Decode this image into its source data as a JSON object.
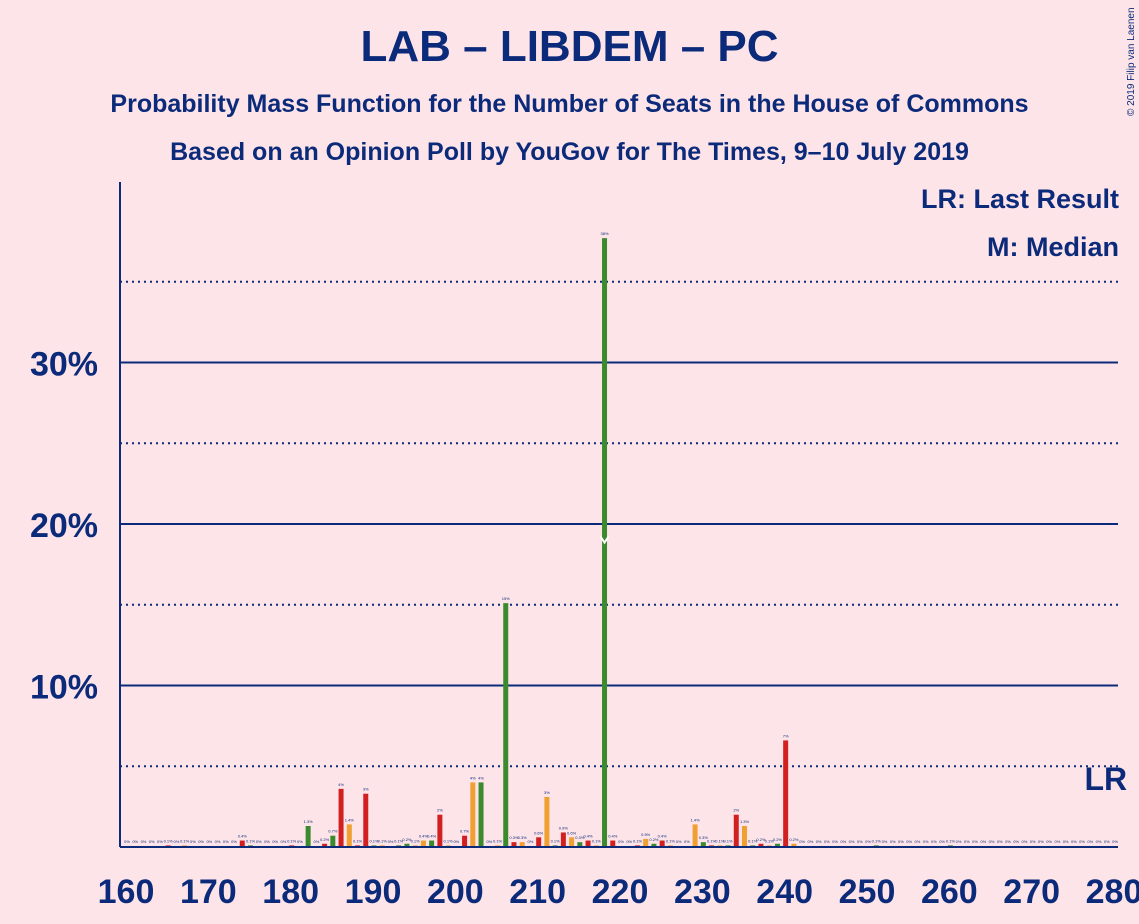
{
  "title": "LAB – LIBDEM – PC",
  "subtitle": "Probability Mass Function for the Number of Seats in the House of Commons",
  "subtitle2": "Based on an Opinion Poll by YouGov for The Times, 9–10 July 2019",
  "copyright": "© 2019 Filip van Laenen",
  "legend": {
    "last_result": "LR: Last Result",
    "median": "M: Median"
  },
  "colors": {
    "background": "#fde4e8",
    "text": "#0c2a7a",
    "green": "#3c8a2e",
    "orange": "#f0a030",
    "red": "#d22020"
  },
  "chart_data": {
    "type": "bar",
    "x_range": [
      160,
      280
    ],
    "x_ticks": [
      160,
      170,
      180,
      190,
      200,
      210,
      220,
      230,
      240,
      250,
      260,
      270,
      280
    ],
    "y_ticks_labelled": [
      10,
      20,
      30
    ],
    "y_tick_labels": [
      "10%",
      "20%",
      "30%"
    ],
    "y_dotted": [
      5,
      15,
      25,
      35
    ],
    "ylim": [
      0,
      41
    ],
    "last_result_seat": 279,
    "last_result_label": "LR",
    "median_seat": 218,
    "median_label": "M",
    "bars": [
      {
        "seat": 160,
        "value": 0.0,
        "label": "0%",
        "color": "green"
      },
      {
        "seat": 161,
        "value": 0.0,
        "label": "0%",
        "color": "orange"
      },
      {
        "seat": 162,
        "value": 0.0,
        "label": "0%",
        "color": "red"
      },
      {
        "seat": 163,
        "value": 0.0,
        "label": "0%",
        "color": "green"
      },
      {
        "seat": 164,
        "value": 0.0,
        "label": "0%",
        "color": "orange"
      },
      {
        "seat": 165,
        "value": 0.1,
        "label": "0.1%",
        "color": "red"
      },
      {
        "seat": 166,
        "value": 0.0,
        "label": "0%",
        "color": "green"
      },
      {
        "seat": 167,
        "value": 0.1,
        "label": "0.1%",
        "color": "orange"
      },
      {
        "seat": 168,
        "value": 0.0,
        "label": "0%",
        "color": "red"
      },
      {
        "seat": 169,
        "value": 0.0,
        "label": "0%",
        "color": "green"
      },
      {
        "seat": 170,
        "value": 0.0,
        "label": "0%",
        "color": "orange"
      },
      {
        "seat": 171,
        "value": 0.0,
        "label": "0%",
        "color": "red"
      },
      {
        "seat": 172,
        "value": 0.0,
        "label": "0%",
        "color": "green"
      },
      {
        "seat": 173,
        "value": 0.0,
        "label": "0%",
        "color": "orange"
      },
      {
        "seat": 174,
        "value": 0.4,
        "label": "0.4%",
        "color": "red"
      },
      {
        "seat": 175,
        "value": 0.1,
        "label": "0.1%",
        "color": "green"
      },
      {
        "seat": 176,
        "value": 0.0,
        "label": "0%",
        "color": "orange"
      },
      {
        "seat": 177,
        "value": 0.0,
        "label": "0%",
        "color": "red"
      },
      {
        "seat": 178,
        "value": 0.0,
        "label": "0%",
        "color": "green"
      },
      {
        "seat": 179,
        "value": 0.0,
        "label": "0%",
        "color": "orange"
      },
      {
        "seat": 180,
        "value": 0.1,
        "label": "0.1%",
        "color": "red"
      },
      {
        "seat": 181,
        "value": 0.0,
        "label": "0%",
        "color": "orange"
      },
      {
        "seat": 182,
        "value": 1.3,
        "label": "1.3%",
        "color": "green"
      },
      {
        "seat": 183,
        "value": 0.0,
        "label": "0%",
        "color": "orange"
      },
      {
        "seat": 184,
        "value": 0.2,
        "label": "0.2%",
        "color": "red"
      },
      {
        "seat": 185,
        "value": 0.7,
        "label": "0.7%",
        "color": "green"
      },
      {
        "seat": 186,
        "value": 3.6,
        "label": "4%",
        "color": "red"
      },
      {
        "seat": 187,
        "value": 1.4,
        "label": "1.4%",
        "color": "orange"
      },
      {
        "seat": 188,
        "value": 0.1,
        "label": "0.1%",
        "color": "red"
      },
      {
        "seat": 189,
        "value": 3.3,
        "label": "3%",
        "color": "red"
      },
      {
        "seat": 190,
        "value": 0.1,
        "label": "0.1%",
        "color": "green"
      },
      {
        "seat": 191,
        "value": 0.1,
        "label": "0.1%",
        "color": "orange"
      },
      {
        "seat": 192,
        "value": 0.0,
        "label": "0%",
        "color": "red"
      },
      {
        "seat": 193,
        "value": 0.1,
        "label": "0.1%",
        "color": "green"
      },
      {
        "seat": 194,
        "value": 0.2,
        "label": "0.2%",
        "color": "green"
      },
      {
        "seat": 195,
        "value": 0.1,
        "label": "0.1%",
        "color": "orange"
      },
      {
        "seat": 196,
        "value": 0.4,
        "label": "0.4%",
        "color": "orange"
      },
      {
        "seat": 197,
        "value": 0.4,
        "label": "0.4%",
        "color": "green"
      },
      {
        "seat": 198,
        "value": 2.0,
        "label": "2%",
        "color": "red"
      },
      {
        "seat": 199,
        "value": 0.1,
        "label": "0.1%",
        "color": "orange"
      },
      {
        "seat": 200,
        "value": 0.0,
        "label": "0%",
        "color": "green"
      },
      {
        "seat": 201,
        "value": 0.7,
        "label": "0.7%",
        "color": "red"
      },
      {
        "seat": 202,
        "value": 4.0,
        "label": "4%",
        "color": "orange"
      },
      {
        "seat": 203,
        "value": 4.0,
        "label": "4%",
        "color": "green"
      },
      {
        "seat": 204,
        "value": 0.0,
        "label": "0%",
        "color": "red"
      },
      {
        "seat": 205,
        "value": 0.1,
        "label": "0.1%",
        "color": "orange"
      },
      {
        "seat": 206,
        "value": 15.1,
        "label": "15%",
        "color": "green"
      },
      {
        "seat": 207,
        "value": 0.3,
        "label": "0.3%",
        "color": "red"
      },
      {
        "seat": 208,
        "value": 0.3,
        "label": "0.3%",
        "color": "orange"
      },
      {
        "seat": 209,
        "value": 0.0,
        "label": "0%",
        "color": "green"
      },
      {
        "seat": 210,
        "value": 0.6,
        "label": "0.6%",
        "color": "red"
      },
      {
        "seat": 211,
        "value": 3.1,
        "label": "3%",
        "color": "orange"
      },
      {
        "seat": 212,
        "value": 0.1,
        "label": "0.1%",
        "color": "green"
      },
      {
        "seat": 213,
        "value": 0.9,
        "label": "0.9%",
        "color": "red"
      },
      {
        "seat": 214,
        "value": 0.6,
        "label": "0.6%",
        "color": "orange"
      },
      {
        "seat": 215,
        "value": 0.3,
        "label": "0.3%",
        "color": "green"
      },
      {
        "seat": 216,
        "value": 0.4,
        "label": "0.4%",
        "color": "red"
      },
      {
        "seat": 217,
        "value": 0.1,
        "label": "0.1%",
        "color": "orange"
      },
      {
        "seat": 218,
        "value": 37.7,
        "label": "38%",
        "color": "green"
      },
      {
        "seat": 219,
        "value": 0.4,
        "label": "0.4%",
        "color": "red"
      },
      {
        "seat": 220,
        "value": 0.0,
        "label": "0%",
        "color": "orange"
      },
      {
        "seat": 221,
        "value": 0.0,
        "label": "0%",
        "color": "green"
      },
      {
        "seat": 222,
        "value": 0.1,
        "label": "0.1%",
        "color": "red"
      },
      {
        "seat": 223,
        "value": 0.5,
        "label": "0.5%",
        "color": "orange"
      },
      {
        "seat": 224,
        "value": 0.2,
        "label": "0.2%",
        "color": "green"
      },
      {
        "seat": 225,
        "value": 0.4,
        "label": "0.4%",
        "color": "red"
      },
      {
        "seat": 226,
        "value": 0.1,
        "label": "0.1%",
        "color": "orange"
      },
      {
        "seat": 227,
        "value": 0.0,
        "label": "0%",
        "color": "green"
      },
      {
        "seat": 228,
        "value": 0.0,
        "label": "0%",
        "color": "red"
      },
      {
        "seat": 229,
        "value": 1.4,
        "label": "1.4%",
        "color": "orange"
      },
      {
        "seat": 230,
        "value": 0.3,
        "label": "0.3%",
        "color": "green"
      },
      {
        "seat": 231,
        "value": 0.1,
        "label": "0.1%",
        "color": "red"
      },
      {
        "seat": 232,
        "value": 0.1,
        "label": "0.1%",
        "color": "orange"
      },
      {
        "seat": 233,
        "value": 0.1,
        "label": "0.1%",
        "color": "green"
      },
      {
        "seat": 234,
        "value": 2.0,
        "label": "2%",
        "color": "red"
      },
      {
        "seat": 235,
        "value": 1.3,
        "label": "1.3%",
        "color": "orange"
      },
      {
        "seat": 236,
        "value": 0.1,
        "label": "0.1%",
        "color": "green"
      },
      {
        "seat": 237,
        "value": 0.2,
        "label": "0.2%",
        "color": "red"
      },
      {
        "seat": 238,
        "value": 0.1,
        "label": "0.1%",
        "color": "orange"
      },
      {
        "seat": 239,
        "value": 0.2,
        "label": "0.2%",
        "color": "green"
      },
      {
        "seat": 240,
        "value": 6.6,
        "label": "7%",
        "color": "red"
      },
      {
        "seat": 241,
        "value": 0.2,
        "label": "0.2%",
        "color": "orange"
      },
      {
        "seat": 242,
        "value": 0.0,
        "label": "0%",
        "color": "green"
      },
      {
        "seat": 243,
        "value": 0.0,
        "label": "0%",
        "color": "red"
      },
      {
        "seat": 244,
        "value": 0.0,
        "label": "0%",
        "color": "orange"
      },
      {
        "seat": 245,
        "value": 0.0,
        "label": "0%",
        "color": "green"
      },
      {
        "seat": 246,
        "value": 0.0,
        "label": "0%",
        "color": "red"
      },
      {
        "seat": 247,
        "value": 0.0,
        "label": "0%",
        "color": "orange"
      },
      {
        "seat": 248,
        "value": 0.0,
        "label": "0%",
        "color": "green"
      },
      {
        "seat": 249,
        "value": 0.0,
        "label": "0%",
        "color": "red"
      },
      {
        "seat": 250,
        "value": 0.0,
        "label": "0%",
        "color": "orange"
      },
      {
        "seat": 251,
        "value": 0.1,
        "label": "0.1%",
        "color": "green"
      },
      {
        "seat": 252,
        "value": 0.0,
        "label": "0%",
        "color": "red"
      },
      {
        "seat": 253,
        "value": 0.0,
        "label": "0%",
        "color": "orange"
      },
      {
        "seat": 254,
        "value": 0.0,
        "label": "0%",
        "color": "green"
      },
      {
        "seat": 255,
        "value": 0.0,
        "label": "0%",
        "color": "red"
      },
      {
        "seat": 256,
        "value": 0.0,
        "label": "0%",
        "color": "orange"
      },
      {
        "seat": 257,
        "value": 0.0,
        "label": "0%",
        "color": "green"
      },
      {
        "seat": 258,
        "value": 0.0,
        "label": "0%",
        "color": "red"
      },
      {
        "seat": 259,
        "value": 0.0,
        "label": "0%",
        "color": "orange"
      },
      {
        "seat": 260,
        "value": 0.1,
        "label": "0.1%",
        "color": "green"
      },
      {
        "seat": 261,
        "value": 0.0,
        "label": "0%",
        "color": "red"
      },
      {
        "seat": 262,
        "value": 0.0,
        "label": "0%",
        "color": "orange"
      },
      {
        "seat": 263,
        "value": 0.0,
        "label": "0%",
        "color": "green"
      },
      {
        "seat": 264,
        "value": 0.0,
        "label": "0%",
        "color": "red"
      },
      {
        "seat": 265,
        "value": 0.0,
        "label": "0%",
        "color": "orange"
      },
      {
        "seat": 266,
        "value": 0.0,
        "label": "0%",
        "color": "green"
      },
      {
        "seat": 267,
        "value": 0.0,
        "label": "0%",
        "color": "red"
      },
      {
        "seat": 268,
        "value": 0.0,
        "label": "0%",
        "color": "orange"
      },
      {
        "seat": 269,
        "value": 0.0,
        "label": "0%",
        "color": "green"
      },
      {
        "seat": 270,
        "value": 0.0,
        "label": "0%",
        "color": "red"
      },
      {
        "seat": 271,
        "value": 0.0,
        "label": "0%",
        "color": "orange"
      },
      {
        "seat": 272,
        "value": 0.0,
        "label": "0%",
        "color": "green"
      },
      {
        "seat": 273,
        "value": 0.0,
        "label": "0%",
        "color": "red"
      },
      {
        "seat": 274,
        "value": 0.0,
        "label": "0%",
        "color": "orange"
      },
      {
        "seat": 275,
        "value": 0.0,
        "label": "0%",
        "color": "green"
      },
      {
        "seat": 276,
        "value": 0.0,
        "label": "0%",
        "color": "red"
      },
      {
        "seat": 277,
        "value": 0.0,
        "label": "0%",
        "color": "orange"
      },
      {
        "seat": 278,
        "value": 0.0,
        "label": "0%",
        "color": "green"
      },
      {
        "seat": 279,
        "value": 0.0,
        "label": "0%",
        "color": "red"
      },
      {
        "seat": 280,
        "value": 0.0,
        "label": "0%",
        "color": "orange"
      }
    ]
  }
}
